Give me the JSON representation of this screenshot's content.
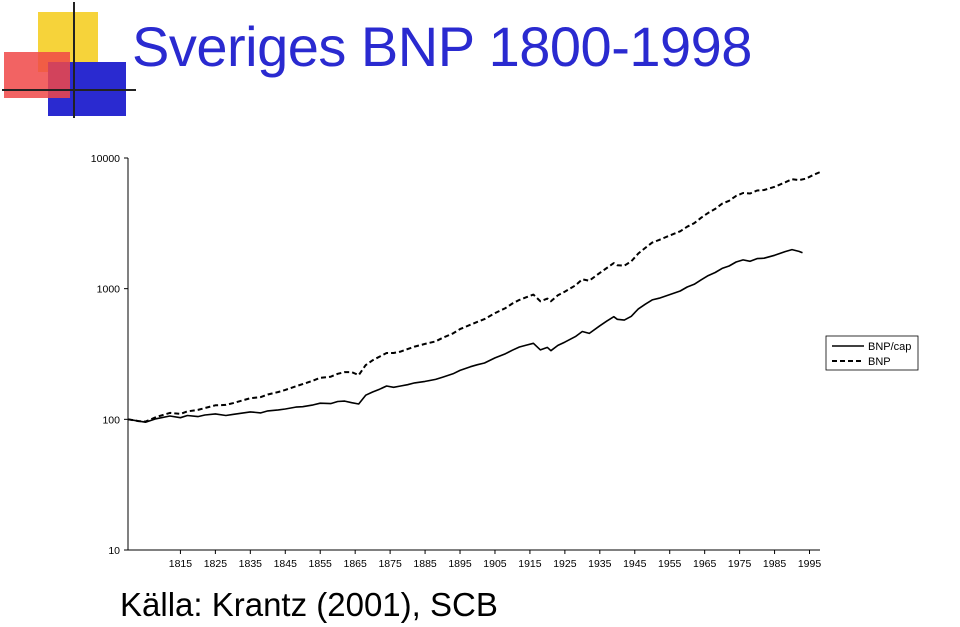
{
  "slide": {
    "title": "Sveriges BNP 1800-1998",
    "source": "Källa: Krantz (2001), SCB"
  },
  "colors": {
    "title": "#2a2ad0",
    "logo_yellow": "#f6d33a",
    "logo_red": "#f04848",
    "logo_blue": "#2a2ad0",
    "line": "#000000"
  },
  "chart_data": {
    "type": "line",
    "title": "",
    "xlabel": "",
    "ylabel": "",
    "yscale": "log",
    "xlim": [
      1800,
      1998
    ],
    "ylim": [
      10,
      10000
    ],
    "y_ticks": [
      "10000",
      "1000",
      "100",
      "10"
    ],
    "x_ticks": [
      "1815",
      "1825",
      "1835",
      "1845",
      "1855",
      "1865",
      "1875",
      "1885",
      "1895",
      "1905",
      "1915",
      "1925",
      "1935",
      "1945",
      "1955",
      "1965",
      "1975",
      "1985",
      "1995"
    ],
    "legend": {
      "placement": "right",
      "entries": [
        "BNP/cap",
        "BNP"
      ]
    },
    "series": [
      {
        "name": "BNP/cap",
        "style": "solid",
        "points": [
          [
            1800,
            100
          ],
          [
            1803,
            97
          ],
          [
            1805,
            95
          ],
          [
            1808,
            101
          ],
          [
            1812,
            106
          ],
          [
            1815,
            103
          ],
          [
            1817,
            107
          ],
          [
            1820,
            105
          ],
          [
            1822,
            108
          ],
          [
            1825,
            110
          ],
          [
            1828,
            107
          ],
          [
            1830,
            109
          ],
          [
            1833,
            112
          ],
          [
            1835,
            114
          ],
          [
            1838,
            112
          ],
          [
            1840,
            116
          ],
          [
            1843,
            118
          ],
          [
            1845,
            120
          ],
          [
            1848,
            124
          ],
          [
            1850,
            125
          ],
          [
            1853,
            129
          ],
          [
            1855,
            133
          ],
          [
            1858,
            132
          ],
          [
            1860,
            137
          ],
          [
            1862,
            138
          ],
          [
            1864,
            134
          ],
          [
            1866,
            131
          ],
          [
            1868,
            153
          ],
          [
            1870,
            162
          ],
          [
            1872,
            170
          ],
          [
            1874,
            180
          ],
          [
            1876,
            176
          ],
          [
            1878,
            180
          ],
          [
            1880,
            184
          ],
          [
            1882,
            190
          ],
          [
            1885,
            195
          ],
          [
            1888,
            202
          ],
          [
            1890,
            210
          ],
          [
            1893,
            223
          ],
          [
            1895,
            237
          ],
          [
            1898,
            253
          ],
          [
            1900,
            262
          ],
          [
            1902,
            270
          ],
          [
            1905,
            295
          ],
          [
            1908,
            318
          ],
          [
            1910,
            338
          ],
          [
            1912,
            358
          ],
          [
            1914,
            370
          ],
          [
            1916,
            382
          ],
          [
            1918,
            340
          ],
          [
            1920,
            355
          ],
          [
            1921,
            335
          ],
          [
            1923,
            368
          ],
          [
            1925,
            390
          ],
          [
            1928,
            430
          ],
          [
            1930,
            470
          ],
          [
            1932,
            455
          ],
          [
            1935,
            520
          ],
          [
            1937,
            565
          ],
          [
            1939,
            610
          ],
          [
            1940,
            583
          ],
          [
            1942,
            575
          ],
          [
            1944,
            615
          ],
          [
            1946,
            700
          ],
          [
            1948,
            760
          ],
          [
            1950,
            820
          ],
          [
            1952,
            845
          ],
          [
            1955,
            900
          ],
          [
            1958,
            960
          ],
          [
            1960,
            1030
          ],
          [
            1962,
            1080
          ],
          [
            1964,
            1170
          ],
          [
            1966,
            1260
          ],
          [
            1968,
            1330
          ],
          [
            1970,
            1430
          ],
          [
            1972,
            1490
          ],
          [
            1974,
            1600
          ],
          [
            1976,
            1660
          ],
          [
            1978,
            1620
          ],
          [
            1980,
            1700
          ],
          [
            1982,
            1710
          ],
          [
            1985,
            1800
          ],
          [
            1988,
            1920
          ],
          [
            1990,
            1990
          ],
          [
            1992,
            1930
          ],
          [
            1993,
            1880
          ]
        ]
      },
      {
        "name": "BNP",
        "style": "dashed",
        "points": [
          [
            1800,
            100
          ],
          [
            1803,
            97
          ],
          [
            1805,
            96
          ],
          [
            1808,
            104
          ],
          [
            1812,
            112
          ],
          [
            1815,
            110
          ],
          [
            1817,
            115
          ],
          [
            1820,
            118
          ],
          [
            1823,
            124
          ],
          [
            1825,
            128
          ],
          [
            1828,
            129
          ],
          [
            1830,
            133
          ],
          [
            1833,
            140
          ],
          [
            1835,
            145
          ],
          [
            1838,
            148
          ],
          [
            1840,
            155
          ],
          [
            1843,
            162
          ],
          [
            1845,
            168
          ],
          [
            1848,
            179
          ],
          [
            1850,
            186
          ],
          [
            1853,
            198
          ],
          [
            1855,
            208
          ],
          [
            1858,
            212
          ],
          [
            1860,
            223
          ],
          [
            1862,
            230
          ],
          [
            1864,
            230
          ],
          [
            1866,
            218
          ],
          [
            1868,
            260
          ],
          [
            1870,
            283
          ],
          [
            1872,
            302
          ],
          [
            1874,
            322
          ],
          [
            1876,
            322
          ],
          [
            1878,
            330
          ],
          [
            1880,
            345
          ],
          [
            1882,
            360
          ],
          [
            1885,
            378
          ],
          [
            1888,
            395
          ],
          [
            1890,
            420
          ],
          [
            1893,
            455
          ],
          [
            1895,
            490
          ],
          [
            1898,
            530
          ],
          [
            1900,
            558
          ],
          [
            1902,
            585
          ],
          [
            1905,
            650
          ],
          [
            1908,
            710
          ],
          [
            1910,
            770
          ],
          [
            1912,
            820
          ],
          [
            1914,
            860
          ],
          [
            1916,
            900
          ],
          [
            1918,
            800
          ],
          [
            1920,
            840
          ],
          [
            1921,
            800
          ],
          [
            1923,
            890
          ],
          [
            1925,
            950
          ],
          [
            1928,
            1060
          ],
          [
            1930,
            1180
          ],
          [
            1932,
            1150
          ],
          [
            1935,
            1320
          ],
          [
            1937,
            1440
          ],
          [
            1939,
            1570
          ],
          [
            1940,
            1510
          ],
          [
            1942,
            1500
          ],
          [
            1944,
            1620
          ],
          [
            1946,
            1860
          ],
          [
            1948,
            2050
          ],
          [
            1950,
            2250
          ],
          [
            1952,
            2360
          ],
          [
            1955,
            2550
          ],
          [
            1958,
            2750
          ],
          [
            1960,
            2980
          ],
          [
            1962,
            3170
          ],
          [
            1964,
            3490
          ],
          [
            1966,
            3800
          ],
          [
            1968,
            4080
          ],
          [
            1970,
            4470
          ],
          [
            1972,
            4700
          ],
          [
            1974,
            5130
          ],
          [
            1976,
            5400
          ],
          [
            1978,
            5350
          ],
          [
            1980,
            5640
          ],
          [
            1982,
            5690
          ],
          [
            1985,
            6020
          ],
          [
            1988,
            6500
          ],
          [
            1990,
            6880
          ],
          [
            1992,
            6770
          ],
          [
            1994,
            6950
          ],
          [
            1996,
            7400
          ],
          [
            1998,
            7800
          ]
        ]
      }
    ]
  }
}
